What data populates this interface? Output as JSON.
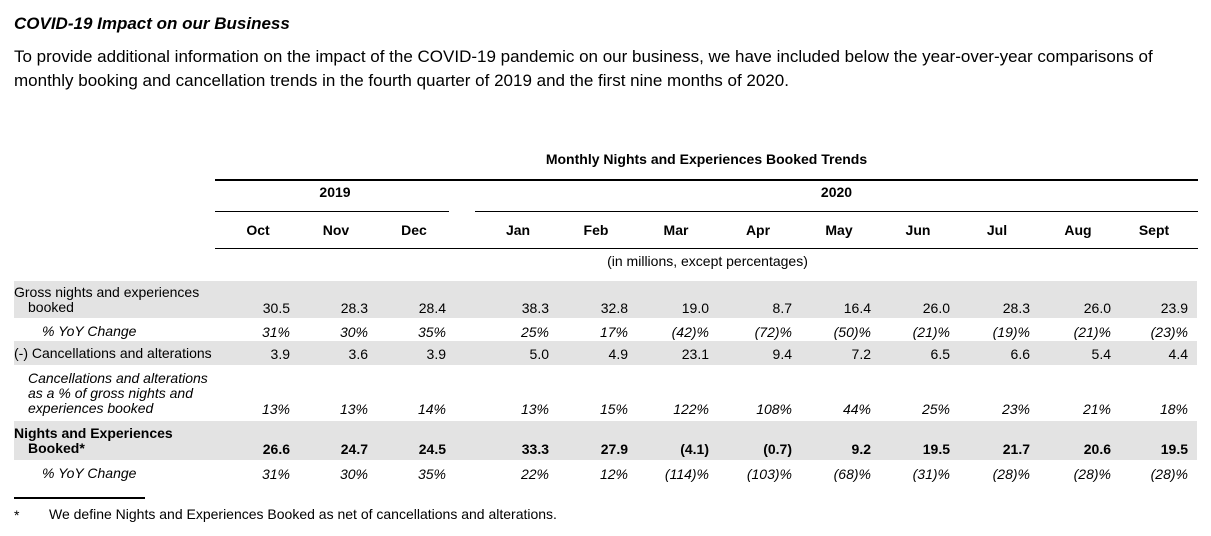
{
  "heading": "COVID-19 Impact on our Business",
  "intro": "To provide additional information on the impact of the COVID-19 pandemic on our business, we have included below the year-over-year comparisons of monthly booking and cancellation trends in the fourth quarter of 2019 and the first nine months of 2020.",
  "table": {
    "title": "Monthly Nights and Experiences Booked Trends",
    "years": [
      "2019",
      "2020"
    ],
    "months": [
      "Oct",
      "Nov",
      "Dec",
      "Jan",
      "Feb",
      "Mar",
      "Apr",
      "May",
      "Jun",
      "Jul",
      "Aug",
      "Sept"
    ],
    "units": "(in millions, except percentages)",
    "rows": [
      {
        "label_lines": [
          "Gross nights and experiences",
          "booked"
        ],
        "values": [
          "30.5",
          "28.3",
          "28.4",
          "38.3",
          "32.8",
          "19.0",
          "8.7",
          "16.4",
          "26.0",
          "28.3",
          "26.0",
          "23.9"
        ]
      },
      {
        "label_lines": [
          "% YoY Change"
        ],
        "values": [
          "31%",
          "30%",
          "35%",
          "25%",
          "17%",
          "(42)%",
          "(72)%",
          "(50)%",
          "(21)%",
          "(19)%",
          "(21)%",
          "(23)%"
        ]
      },
      {
        "label_lines": [
          "(-) Cancellations and alterations"
        ],
        "values": [
          "3.9",
          "3.6",
          "3.9",
          "5.0",
          "4.9",
          "23.1",
          "9.4",
          "7.2",
          "6.5",
          "6.6",
          "5.4",
          "4.4"
        ]
      },
      {
        "label_lines": [
          "Cancellations and alterations",
          "as a % of gross nights and",
          "experiences booked"
        ],
        "values": [
          "13%",
          "13%",
          "14%",
          "13%",
          "15%",
          "122%",
          "108%",
          "44%",
          "25%",
          "23%",
          "21%",
          "18%"
        ]
      },
      {
        "label_lines": [
          "Nights and Experiences",
          "Booked*"
        ],
        "values": [
          "26.6",
          "24.7",
          "24.5",
          "33.3",
          "27.9",
          "(4.1)",
          "(0.7)",
          "9.2",
          "19.5",
          "21.7",
          "20.6",
          "19.5"
        ]
      },
      {
        "label_lines": [
          "% YoY Change"
        ],
        "values": [
          "31%",
          "30%",
          "35%",
          "22%",
          "12%",
          "(114)%",
          "(103)%",
          "(68)%",
          "(31)%",
          "(28)%",
          "(28)%",
          "(28)%"
        ]
      }
    ]
  },
  "footnote": {
    "mark": "*",
    "text": "We define Nights and Experiences Booked as net of cancellations and alterations."
  }
}
